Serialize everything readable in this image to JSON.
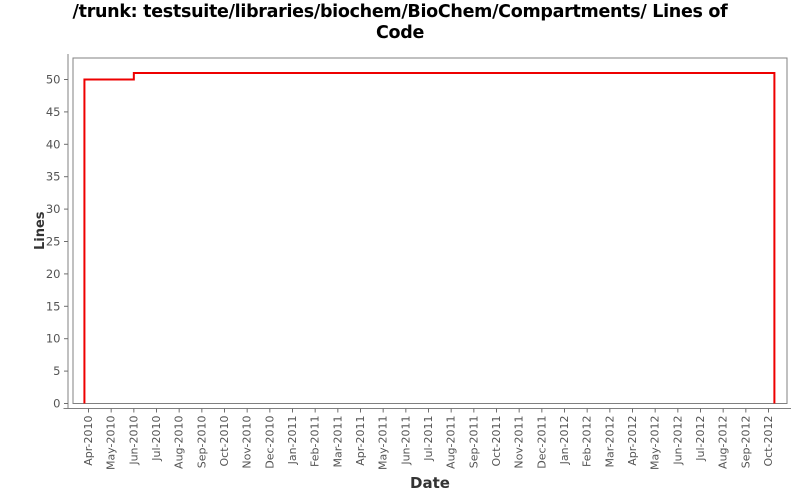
{
  "title": {
    "full": "/trunk: testsuite/libraries/biochem/BioChem/Compartments/ Lines of Code",
    "line1": "/trunk: testsuite/libraries/biochem/BioChem/Compartments/ Lines of",
    "line2": "Code"
  },
  "chart_data": {
    "type": "line",
    "subtype": "step",
    "title": "/trunk: testsuite/libraries/biochem/BioChem/Compartments/ Lines of Code",
    "xlabel": "Date",
    "ylabel": "Lines",
    "grid": false,
    "legend": "none",
    "ylim": [
      0,
      53.3
    ],
    "y_ticks": [
      0,
      5,
      10,
      15,
      20,
      25,
      30,
      35,
      40,
      45,
      50
    ],
    "x_tick_labels": [
      "Apr-2010",
      "May-2010",
      "Jun-2010",
      "Jul-2010",
      "Aug-2010",
      "Sep-2010",
      "Oct-2010",
      "Nov-2010",
      "Dec-2010",
      "Jan-2011",
      "Feb-2011",
      "Mar-2011",
      "Apr-2011",
      "May-2011",
      "Jun-2011",
      "Jul-2011",
      "Aug-2011",
      "Sep-2011",
      "Oct-2011",
      "Nov-2011",
      "Dec-2011",
      "Jan-2012",
      "Feb-2012",
      "Mar-2012",
      "Apr-2012",
      "May-2012",
      "Jun-2012",
      "Jul-2012",
      "Aug-2012",
      "Sep-2012",
      "Oct-2012"
    ],
    "x_unit_note": "x values below are in months, 0 = Apr-2010 tick",
    "series": [
      {
        "name": "Lines of Code",
        "color": "#ee0000",
        "points": [
          [
            -0.18,
            0
          ],
          [
            -0.18,
            50
          ],
          [
            2.0,
            50
          ],
          [
            2.0,
            51
          ],
          [
            30.26,
            51
          ],
          [
            30.26,
            0
          ]
        ]
      }
    ],
    "colors": {
      "frame": "#808080",
      "axis_line": "#808080",
      "tick_mark": "#6e6e6e",
      "tick_label": "#545454",
      "axis_label": "#333333",
      "background": "#ffffff"
    }
  }
}
